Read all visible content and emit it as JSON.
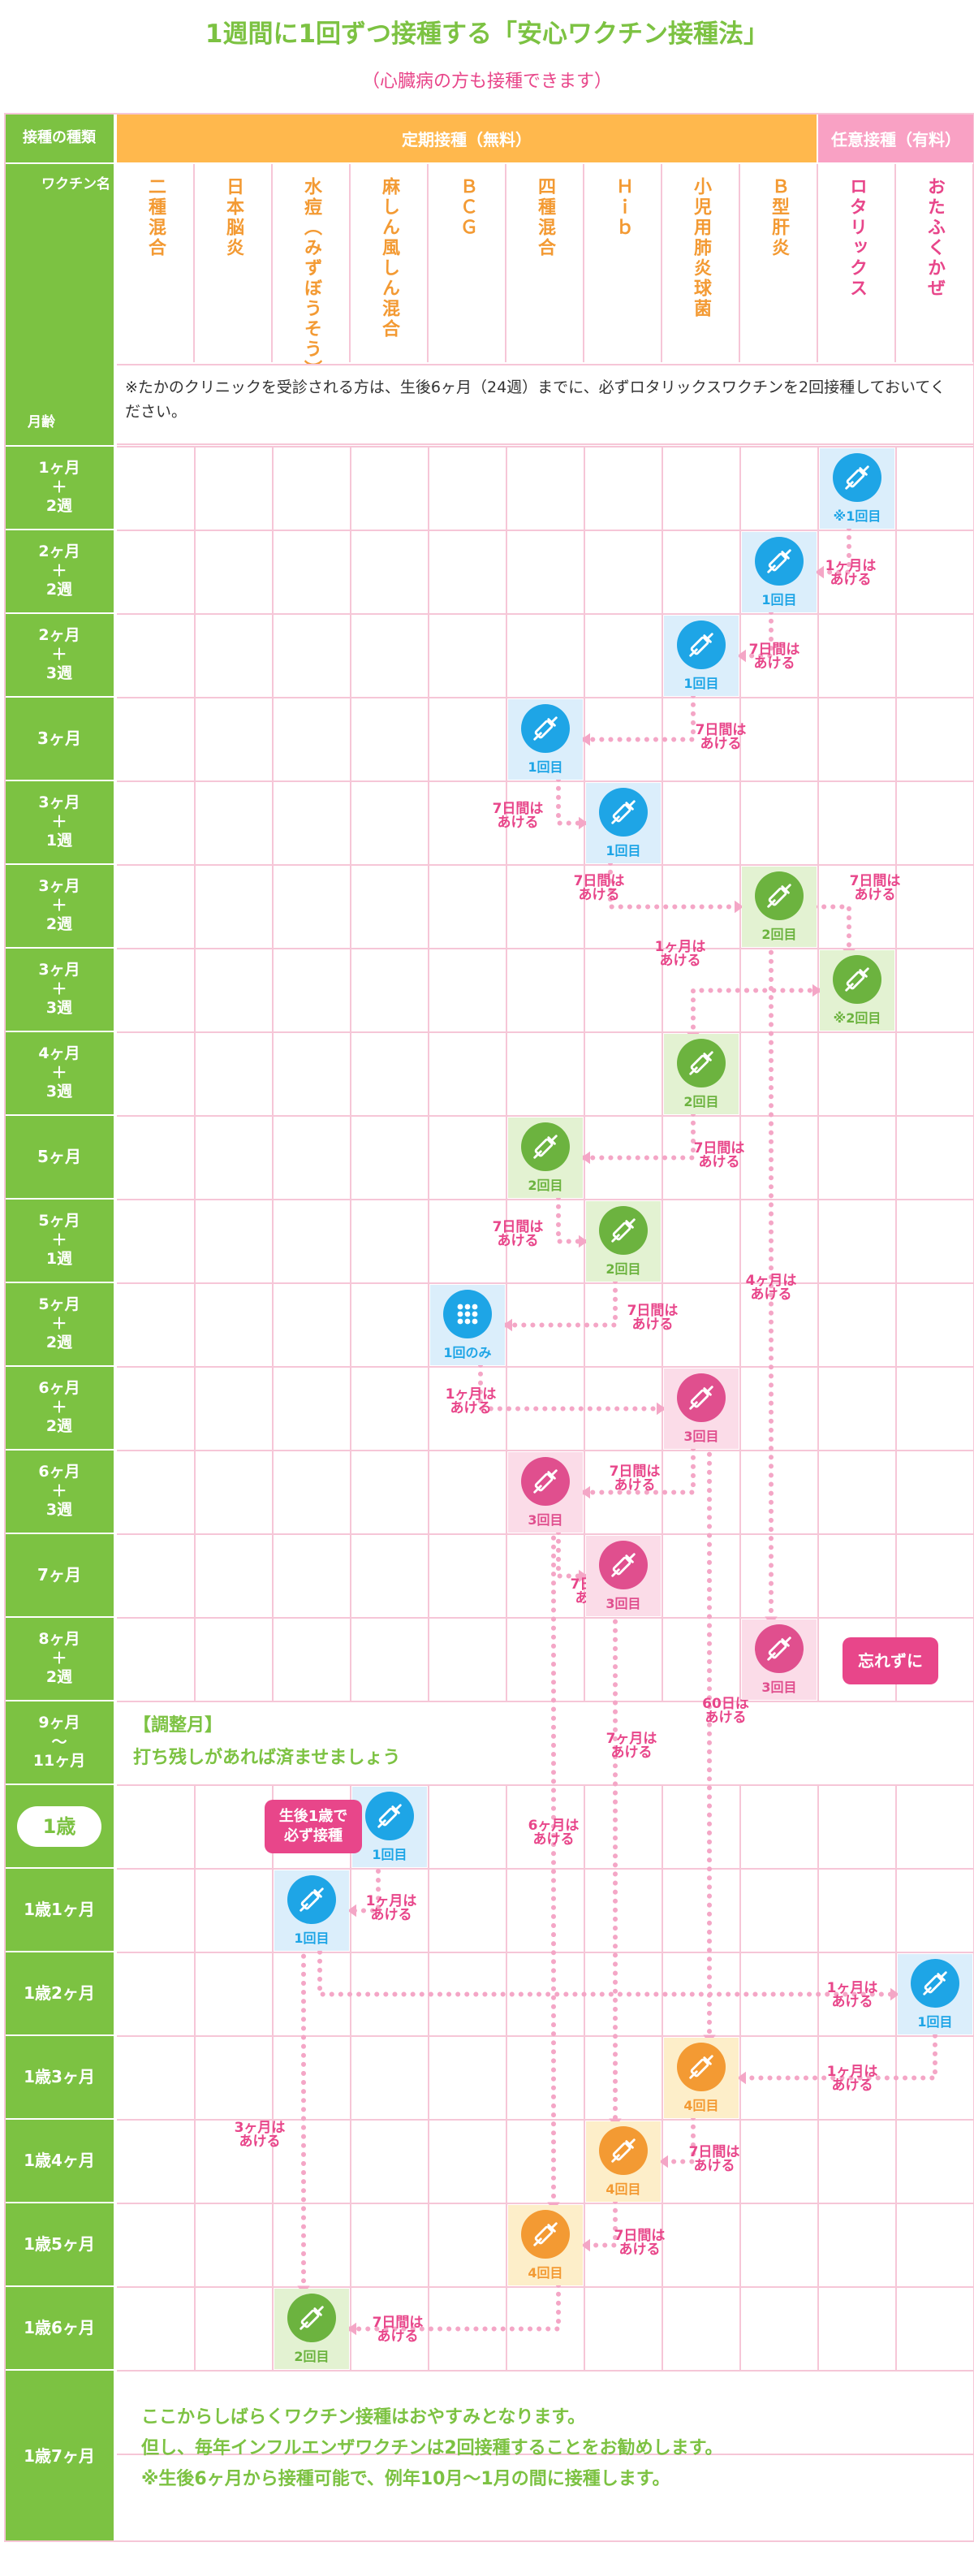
{
  "title": "1週間に1回ずつ接種する「安心ワクチン接種法」",
  "subtitle": "（心臓病の方も接種できます）",
  "colors": {
    "green": "#7cc242",
    "orange": "#ffb84d",
    "pink": "#f9a1c4",
    "pink_text": "#e8468a",
    "grid": "#f6c6d7",
    "blue": "#1ea5e6",
    "blue_bg": "#dbeefb",
    "green_dose": "#6cb33f",
    "green_bg": "#e3f2d2",
    "magenta": "#e04f8e",
    "magenta_bg": "#fbdce8",
    "orange_dose": "#f39a33",
    "orange_bg": "#fdeec9"
  },
  "header": {
    "type_label": "接種の種類",
    "vaccine_label": "ワクチン名",
    "age_label": "月齢",
    "routine_label": "定期接種（無料）",
    "optional_label": "任意接種（有料）"
  },
  "vaccines": [
    {
      "name": "二種混合",
      "kind": "routine"
    },
    {
      "name": "日本脳炎",
      "kind": "routine"
    },
    {
      "name": "水痘（みずぼうそう）",
      "kind": "routine"
    },
    {
      "name": "麻しん風しん混合",
      "kind": "routine"
    },
    {
      "name": "ＢＣＧ",
      "kind": "routine"
    },
    {
      "name": "四種混合",
      "kind": "routine"
    },
    {
      "name": "Ｈｉｂ",
      "kind": "routine"
    },
    {
      "name": "小児用肺炎球菌",
      "kind": "routine"
    },
    {
      "name": "Ｂ型肝炎",
      "kind": "routine"
    },
    {
      "name": "ロタリックス",
      "kind": "optional"
    },
    {
      "name": "おたふくかぜ",
      "kind": "optional"
    }
  ],
  "notice": "※たかのクリニックを受診される方は、生後6ヶ月（24週）までに、必ずロタリックスワクチンを2回接種しておいてください。",
  "ages": [
    "1ヶ月\n＋\n2週",
    "2ヶ月\n＋\n2週",
    "2ヶ月\n＋\n3週",
    "3ヶ月",
    "3ヶ月\n＋\n1週",
    "3ヶ月\n＋\n2週",
    "3ヶ月\n＋\n3週",
    "4ヶ月\n＋\n3週",
    "5ヶ月",
    "5ヶ月\n＋\n1週",
    "5ヶ月\n＋\n2週",
    "6ヶ月\n＋\n2週",
    "6ヶ月\n＋\n3週",
    "7ヶ月",
    "8ヶ月\n＋\n2週",
    "9ヶ月\n〜\n11ヶ月",
    "1歳",
    "1歳1ヶ月",
    "1歳2ヶ月",
    "1歳3ヶ月",
    "1歳4ヶ月",
    "1歳5ヶ月",
    "1歳6ヶ月",
    "1歳7ヶ月"
  ],
  "doses": [
    {
      "row": 0,
      "col": 9,
      "label": "※1回目",
      "color": "blue",
      "glyph": "syringe"
    },
    {
      "row": 1,
      "col": 8,
      "label": "1回目",
      "color": "blue",
      "glyph": "syringe"
    },
    {
      "row": 2,
      "col": 7,
      "label": "1回目",
      "color": "blue",
      "glyph": "syringe"
    },
    {
      "row": 3,
      "col": 5,
      "label": "1回目",
      "color": "blue",
      "glyph": "syringe"
    },
    {
      "row": 4,
      "col": 6,
      "label": "1回目",
      "color": "blue",
      "glyph": "syringe"
    },
    {
      "row": 5,
      "col": 8,
      "label": "2回目",
      "color": "green",
      "glyph": "syringe"
    },
    {
      "row": 6,
      "col": 9,
      "label": "※2回目",
      "color": "green",
      "glyph": "syringe"
    },
    {
      "row": 7,
      "col": 7,
      "label": "2回目",
      "color": "green",
      "glyph": "syringe"
    },
    {
      "row": 8,
      "col": 5,
      "label": "2回目",
      "color": "green",
      "glyph": "syringe"
    },
    {
      "row": 9,
      "col": 6,
      "label": "2回目",
      "color": "green",
      "glyph": "syringe"
    },
    {
      "row": 10,
      "col": 4,
      "label": "1回のみ",
      "color": "blue",
      "glyph": "stamp"
    },
    {
      "row": 11,
      "col": 7,
      "label": "3回目",
      "color": "magenta",
      "glyph": "syringe"
    },
    {
      "row": 12,
      "col": 5,
      "label": "3回目",
      "color": "magenta",
      "glyph": "syringe"
    },
    {
      "row": 13,
      "col": 6,
      "label": "3回目",
      "color": "magenta",
      "glyph": "syringe"
    },
    {
      "row": 14,
      "col": 8,
      "label": "3回目",
      "color": "magenta",
      "glyph": "syringe"
    },
    {
      "row": 16,
      "col": 3,
      "label": "1回目",
      "color": "blue",
      "glyph": "syringe"
    },
    {
      "row": 17,
      "col": 2,
      "label": "1回目",
      "color": "blue",
      "glyph": "syringe"
    },
    {
      "row": 18,
      "col": 10,
      "label": "1回目",
      "color": "blue",
      "glyph": "syringe"
    },
    {
      "row": 19,
      "col": 7,
      "label": "4回目",
      "color": "orange",
      "glyph": "syringe"
    },
    {
      "row": 20,
      "col": 6,
      "label": "4回目",
      "color": "orange",
      "glyph": "syringe"
    },
    {
      "row": 21,
      "col": 5,
      "label": "4回目",
      "color": "orange",
      "glyph": "syringe"
    },
    {
      "row": 22,
      "col": 2,
      "label": "2回目",
      "color": "green",
      "glyph": "syringe"
    }
  ],
  "gaps": [
    {
      "text": "1ヶ月は\nあける"
    },
    {
      "text": "7日間は\nあける"
    },
    {
      "text": "7日間は\nあける"
    },
    {
      "text": "7日間は\nあける"
    },
    {
      "text": "7日間は\nあける"
    },
    {
      "text": "7日間は\nあける"
    },
    {
      "text": "1ヶ月は\nあける"
    },
    {
      "text": "7日間は\nあける"
    },
    {
      "text": "7日間は\nあける"
    },
    {
      "text": "7日間は\nあける"
    },
    {
      "text": "1ヶ月は\nあける"
    },
    {
      "text": "7日間は\nあける"
    },
    {
      "text": "7日間は\nあける"
    },
    {
      "text": "4ヶ月は\nあける"
    },
    {
      "text": "7ヶ月は\nあける"
    },
    {
      "text": "6ヶ月は\nあける"
    },
    {
      "text": "60日は\nあける"
    },
    {
      "text": "1ヶ月は\nあける"
    },
    {
      "text": "1ヶ月は\nあける"
    },
    {
      "text": "1ヶ月は\nあける"
    },
    {
      "text": "7日間は\nあける"
    },
    {
      "text": "7日間は\nあける"
    },
    {
      "text": "7日間は\nあける"
    },
    {
      "text": "3ヶ月は\nあける"
    }
  ],
  "callouts": {
    "dont_forget": "忘れずに",
    "after_one": "生後1歳で\n必ず接種"
  },
  "adjust": {
    "title": "【調整月】",
    "text": "打ち残しがあれば済ませましょう"
  },
  "closing": {
    "line1": "ここからしばらくワクチン接種はおやすみとなります。",
    "line2": "但し、毎年インフルエンザワクチンは2回接種することをお勧めします。",
    "line3": "※生後6ヶ月から接種可能で、例年10月〜1月の間に接種します。"
  }
}
